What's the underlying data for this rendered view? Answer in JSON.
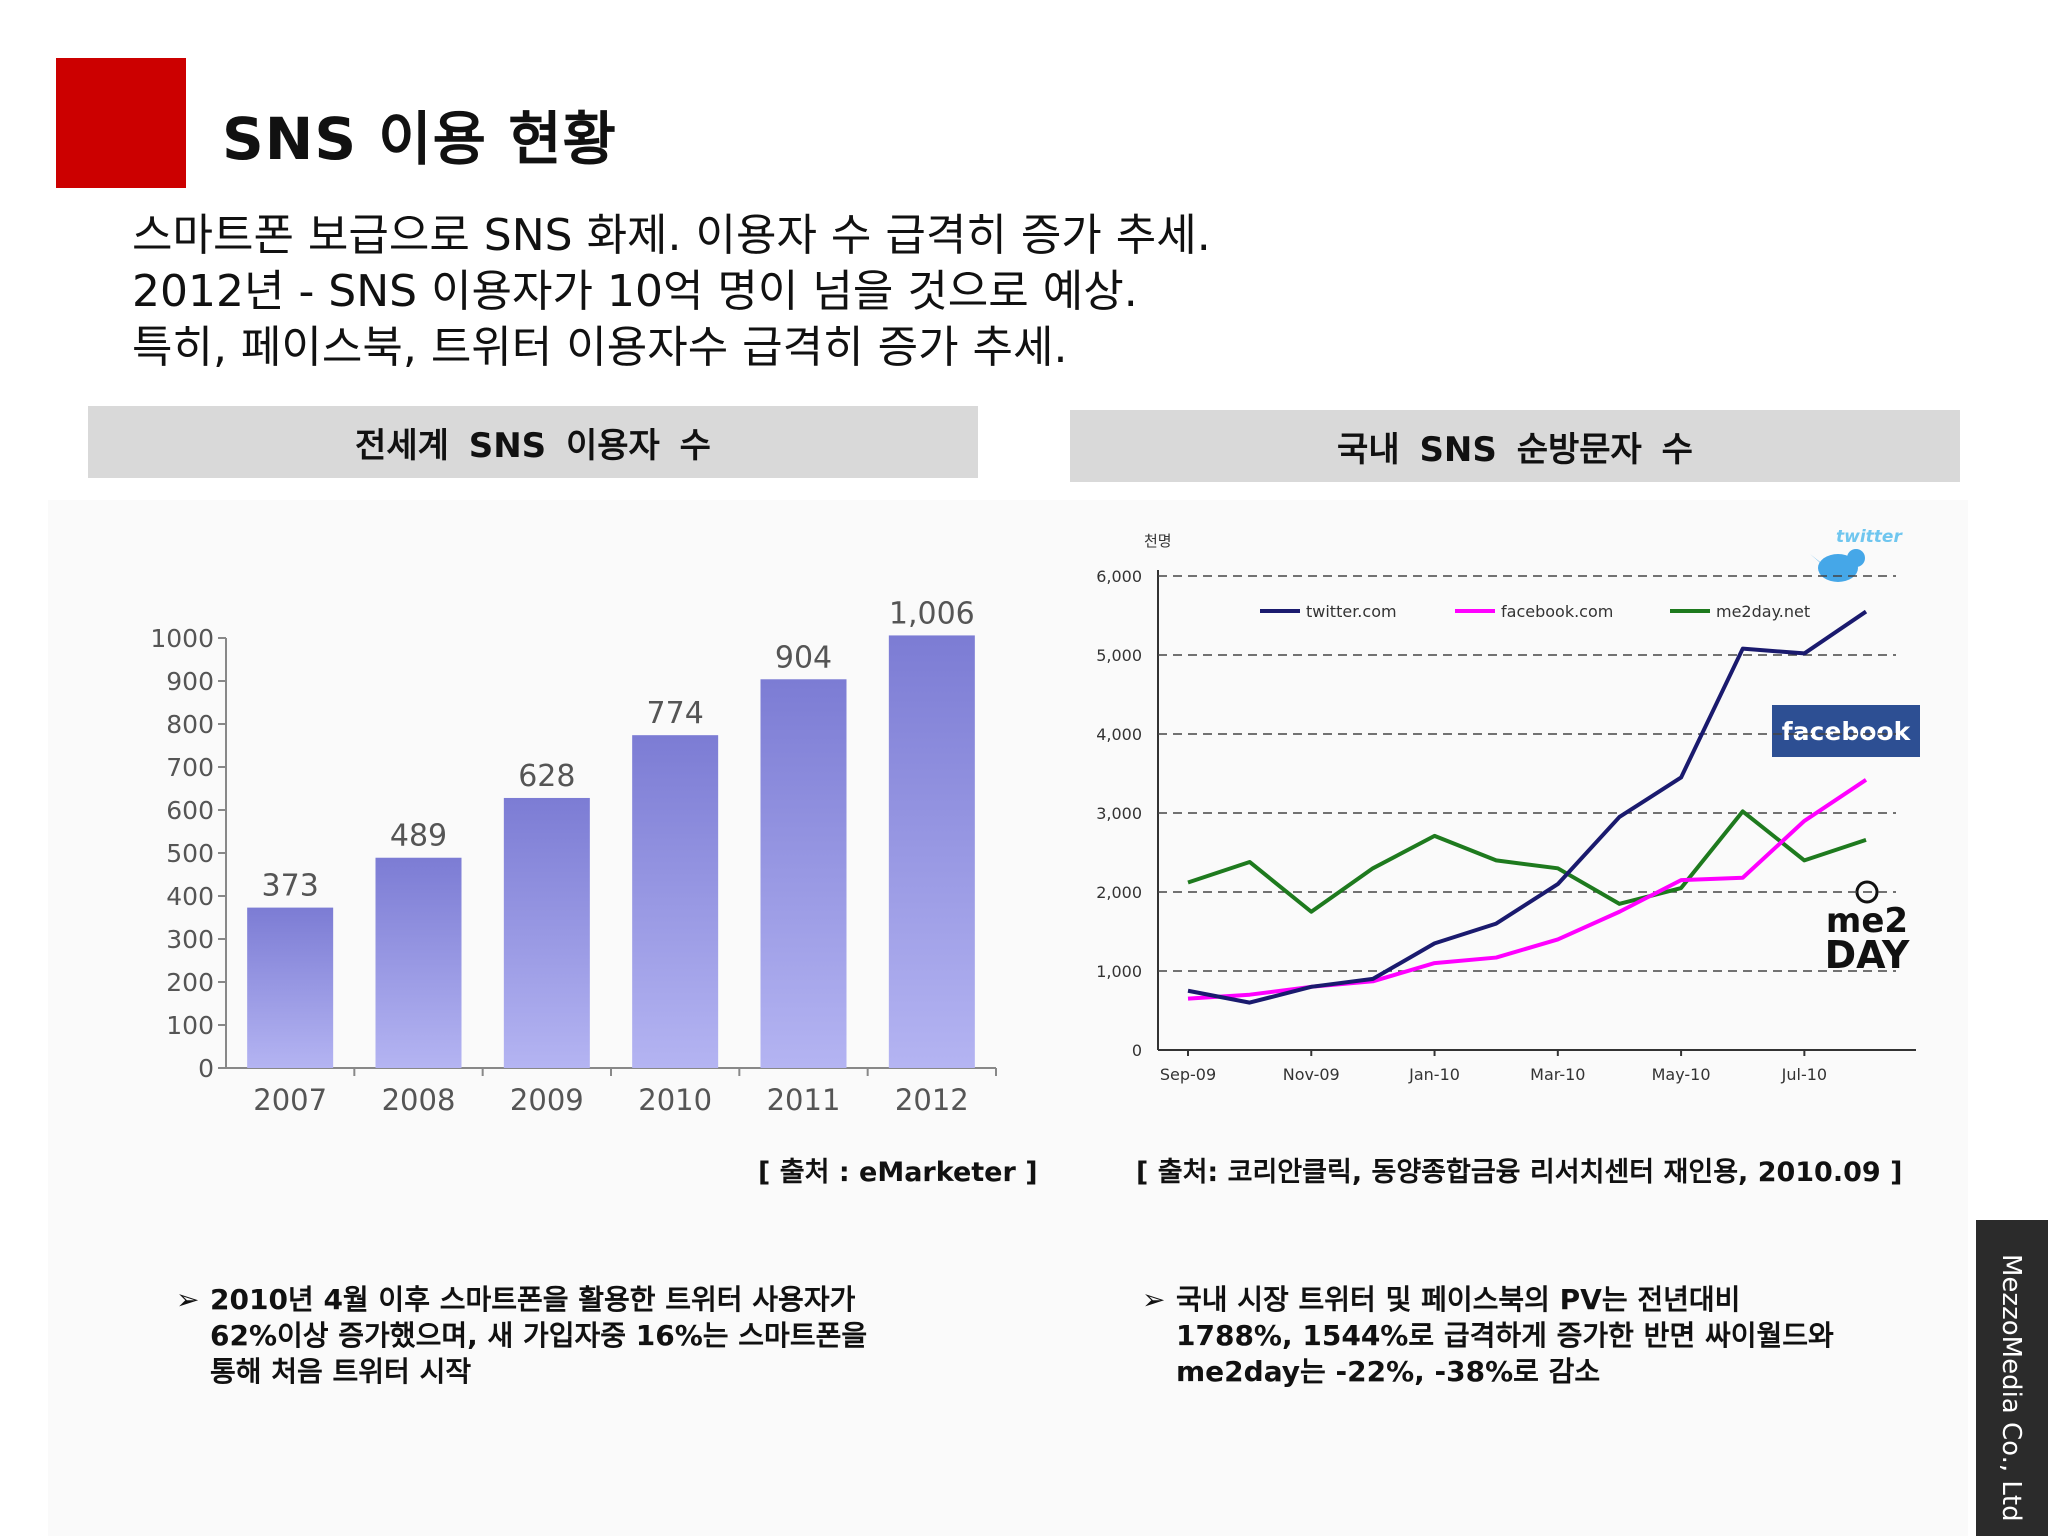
{
  "slide": {
    "title": "SNS 이용 현황",
    "intro_lines": [
      "스마트폰 보급으로 SNS 화제. 이용자 수 급격히 증가 추세.",
      "2012년 - SNS 이용자가 10억 명이 넘을 것으로 예상.",
      "특히, 페이스북, 트위터 이용자수 급격히 증가 추세."
    ],
    "left_panel": {
      "header": "전세계 SNS 이용자 수",
      "source": "[ 출처 : eMarketer ]",
      "bullet": [
        "2010년 4월 이후 스마트폰을 활용한 트위터 사용자가",
        "62%이상 증가했으며, 새 가입자중 16%는 스마트폰을",
        "통해 처음 트위터 시작"
      ]
    },
    "right_panel": {
      "header": "국내 SNS 순방문자 수",
      "source": "[ 출처: 코리안클릭, 동양종합금융 리서치센터 재인용, 2010.09 ]",
      "bullet": [
        "국내 시장 트위터 및 페이스북의 PV는 전년대비",
        "1788%, 1544%로 급격하게 증가한 반면 싸이월드와",
        "me2day는 -22%, -38%로 감소"
      ]
    },
    "logos": {
      "twitter": "twitter",
      "facebook": "facebook",
      "me2day_top": "me2",
      "me2day_bottom": "DAY"
    },
    "company": "MezzoMedia Co., Ltd",
    "colors": {
      "accent": "#cc0000",
      "bar": "#8a8ad8",
      "twitter_line": "#1a1a6e",
      "facebook_line": "#ff00ff",
      "me2day_line": "#1e7a1e",
      "facebook_logo": "#2d4f93"
    }
  },
  "chart_data": [
    {
      "type": "bar",
      "title": "",
      "categories": [
        "2007",
        "2008",
        "2009",
        "2010",
        "2011",
        "2012"
      ],
      "values": [
        373,
        489,
        628,
        774,
        904,
        1006
      ],
      "data_labels": [
        "373",
        "489",
        "628",
        "774",
        "904",
        "1,006"
      ],
      "yticks": [
        "0",
        "100",
        "200",
        "300",
        "400",
        "500",
        "600",
        "700",
        "800",
        "900",
        "1000"
      ],
      "ylim": [
        0,
        1000
      ],
      "grid": false
    },
    {
      "type": "line",
      "title": "",
      "ylabel": "천명",
      "x": [
        "Sep-09",
        "Oct-09",
        "Nov-09",
        "Dec-09",
        "Jan-10",
        "Feb-10",
        "Mar-10",
        "Apr-10",
        "May-10",
        "Jun-10",
        "Jul-10",
        "Aug-10"
      ],
      "xticks": [
        "Sep-09",
        "Nov-09",
        "Jan-10",
        "Mar-10",
        "May-10",
        "Jul-10"
      ],
      "yticks": [
        "0",
        "1,000",
        "2,000",
        "3,000",
        "4,000",
        "5,000",
        "6,000"
      ],
      "ylim": [
        0,
        6000
      ],
      "grid": "dashed-horizontal",
      "legend": "top",
      "series": [
        {
          "name": "twitter.com",
          "values": [
            750,
            600,
            800,
            900,
            1350,
            1600,
            2100,
            2950,
            3450,
            5080,
            5020,
            5550
          ]
        },
        {
          "name": "facebook.com",
          "values": [
            650,
            700,
            800,
            870,
            1100,
            1170,
            1400,
            1750,
            2150,
            2180,
            2900,
            3420
          ]
        },
        {
          "name": "me2day.net",
          "values": [
            2120,
            2380,
            1750,
            2300,
            2710,
            2400,
            2300,
            1850,
            2050,
            3020,
            2400,
            2660
          ]
        }
      ]
    }
  ]
}
